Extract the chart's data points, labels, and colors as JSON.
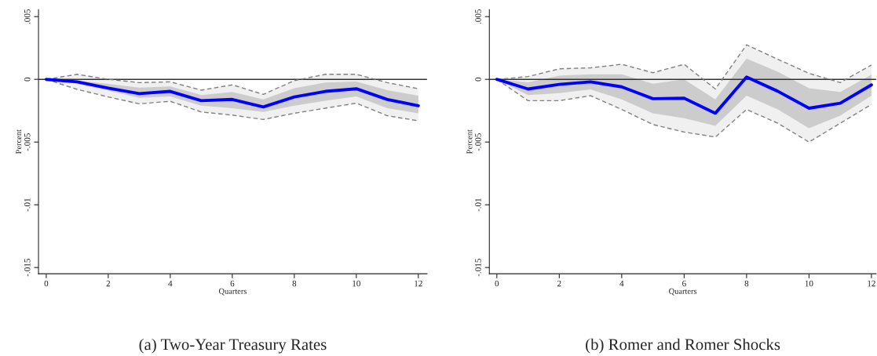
{
  "chart_data": [
    {
      "type": "line",
      "title": "(a) Two-Year Treasury Rates",
      "xlabel": "Quarters",
      "ylabel": "Percent",
      "x": [
        0,
        1,
        2,
        3,
        4,
        5,
        6,
        7,
        8,
        9,
        10,
        11,
        12
      ],
      "xlim": [
        -0.25,
        12.28
      ],
      "xticks": [
        0,
        2,
        4,
        6,
        8,
        10,
        12
      ],
      "ylim": [
        -0.0155,
        0.00556
      ],
      "yticks": [
        {
          "value": 0.005,
          "label": ".005"
        },
        0,
        {
          "value": -0.005,
          "label": "-.005"
        },
        {
          "value": -0.01,
          "label": "-.01"
        },
        {
          "value": -0.015,
          "label": "-.015"
        }
      ],
      "grid": false,
      "legend": false,
      "ref_lines": [
        {
          "axis": "y",
          "value": 0,
          "color": "#333333"
        }
      ],
      "series": [
        {
          "color": "#808080",
          "line_style": "dashed",
          "values": [
            0,
            0.0004,
            0,
            -0.00026,
            -0.0002,
            -0.00086,
            -0.00044,
            -0.0012,
            -0.0001,
            0.0004,
            0.0004,
            -0.00026,
            -0.00075
          ],
          "lower": [
            0,
            -0.0008,
            -0.0014,
            -0.00195,
            -0.00175,
            -0.0026,
            -0.00285,
            -0.0032,
            -0.0027,
            -0.0023,
            -0.0019,
            -0.0029,
            -0.0033
          ],
          "upper": [
            0,
            0.0004,
            0,
            -0.00026,
            -0.0002,
            -0.00086,
            -0.00044,
            -0.0012,
            -0.0001,
            0.0004,
            0.0004,
            -0.00026,
            -0.00075
          ]
        },
        {
          "color": "#808080",
          "line_style": "dashed",
          "values": [
            0,
            -0.0008,
            -0.0014,
            -0.00195,
            -0.00175,
            -0.0026,
            -0.00285,
            -0.0032,
            -0.0027,
            -0.0023,
            -0.0019,
            -0.0029,
            -0.0033
          ]
        },
        {
          "color": "#0000ff",
          "line_style": "solid",
          "values": [
            0,
            -0.0002,
            -0.0007,
            -0.00114,
            -0.00096,
            -0.0017,
            -0.0016,
            -0.0022,
            -0.0014,
            -0.00096,
            -0.00075,
            -0.0016,
            -0.0021
          ],
          "lower": [
            0,
            -0.00037,
            -0.0009,
            -0.00147,
            -0.00136,
            -0.0021,
            -0.0023,
            -0.0026,
            -0.0021,
            -0.0017,
            -0.00136,
            -0.0023,
            -0.0027
          ],
          "upper": [
            0,
            -0.0001,
            -0.00037,
            -0.00066,
            -0.00057,
            -0.00125,
            -0.001,
            -0.0016,
            -0.0007,
            -0.00026,
            -0.00018,
            -0.00086,
            -0.0013
          ]
        }
      ]
    },
    {
      "type": "line",
      "title": "(b) Romer and Romer Shocks",
      "xlabel": "Quarters",
      "ylabel": "Percent",
      "x": [
        0,
        1,
        2,
        3,
        4,
        5,
        6,
        7,
        8,
        9,
        10,
        11,
        12
      ],
      "xlim": [
        -0.24,
        12.15
      ],
      "xticks": [
        0,
        2,
        4,
        6,
        8,
        10,
        12
      ],
      "ylim": [
        -0.0155,
        0.00556
      ],
      "yticks": [
        {
          "value": 0.005,
          "label": ".005"
        },
        0,
        {
          "value": -0.005,
          "label": "-.005"
        },
        {
          "value": -0.01,
          "label": "-.01"
        },
        {
          "value": -0.015,
          "label": "-.015"
        }
      ],
      "grid": false,
      "legend": false,
      "ref_lines": [
        {
          "axis": "y",
          "value": 0,
          "color": "#333333"
        }
      ],
      "series": [
        {
          "color": "#808080",
          "line_style": "dashed",
          "values": [
            0,
            0.00022,
            0.00084,
            0.00092,
            0.0012,
            0.00053,
            0.0012,
            -0.00077,
            0.00275,
            0.0016,
            0.00048,
            -0.00026,
            0.00115
          ],
          "lower": [
            0,
            -0.0017,
            -0.0017,
            -0.0013,
            -0.0024,
            -0.0036,
            -0.0042,
            -0.0046,
            -0.0024,
            -0.0035,
            -0.005,
            -0.0035,
            -0.002
          ],
          "upper": [
            0,
            0.00022,
            0.00084,
            0.00092,
            0.0012,
            0.00053,
            0.0012,
            -0.00077,
            0.00275,
            0.0016,
            0.00048,
            -0.00026,
            0.00115
          ]
        },
        {
          "color": "#808080",
          "line_style": "dashed",
          "values": [
            0,
            -0.0017,
            -0.0017,
            -0.0013,
            -0.0024,
            -0.0036,
            -0.0042,
            -0.0046,
            -0.0024,
            -0.0035,
            -0.005,
            -0.0035,
            -0.002
          ]
        },
        {
          "color": "#0000ff",
          "line_style": "solid",
          "values": [
            0,
            -0.00077,
            -0.0004,
            -0.0002,
            -0.0006,
            -0.00154,
            -0.0015,
            -0.0027,
            0.00018,
            -0.00095,
            -0.0023,
            -0.0019,
            -0.00044
          ],
          "lower": [
            0,
            -0.00125,
            -0.0011,
            -0.0008,
            -0.0016,
            -0.0027,
            -0.0031,
            -0.0037,
            -0.0013,
            -0.0024,
            -0.0039,
            -0.0029,
            -0.0013
          ],
          "upper": [
            0,
            -0.00024,
            0.0003,
            0.0004,
            0.0004,
            -0.00035,
            0,
            -0.0016,
            0.00165,
            0.0006,
            -0.0007,
            -0.001,
            0.00037
          ]
        }
      ]
    }
  ]
}
